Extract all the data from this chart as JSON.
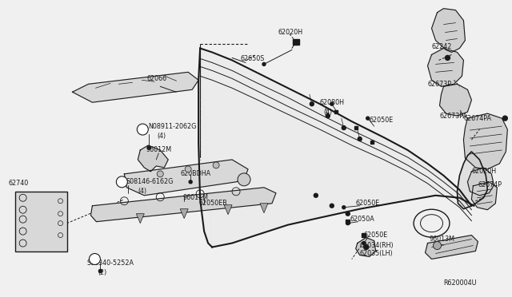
{
  "bg_color": "#f0f0f0",
  "line_color": "#1a1a1a",
  "text_color": "#1a1a1a",
  "fig_width": 6.4,
  "fig_height": 3.72,
  "dpi": 100,
  "ref_code": "R620004U",
  "xlim": [
    0,
    640
  ],
  "ylim": [
    0,
    372
  ]
}
